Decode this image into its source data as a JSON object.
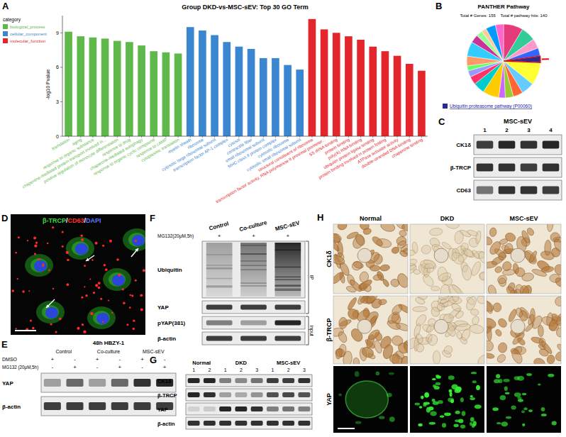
{
  "chart_data": [
    {
      "type": "bar",
      "panel_label": "A",
      "title": "Group DKD-vs-MSC-sEV: Top 30 GO Term",
      "y_label": "-log10 Pvalue",
      "legend_title": "category",
      "legend": "top-left",
      "grid": false,
      "categories": [
        "translation",
        "aging",
        "response to organic substance",
        "chaperone-mediated protein transport involved in...",
        "positive regulation of monocyte differentiation",
        "response to drug",
        "chaperone-mediated autophagy",
        "response to organic cyclic compound",
        "response to cAMP",
        "cytoplasmic translation",
        "myelin sheath",
        "ribosome",
        "cytosolic large ribosomal subunit",
        "transcription factor AP-1 complex",
        "cytosol",
        "contractile fiber",
        "small ribosomal subunit",
        "MHC class II protein complex",
        "cytosolic ribosome",
        "cytosolic small ribosomal subunit",
        "structural constituent of ribosome",
        "transcription factor activity, RNA polymerase II proximal promoter...",
        "5S rRNA binding",
        "protein binding",
        "poly(A) RNA binding",
        "ubiquitin protein ligase binding",
        "protein binding involved in protein folding",
        "ATPase activator activity",
        "double-stranded DNA binding",
        "chaperone binding"
      ],
      "series": [
        {
          "name": "biological_process",
          "color": "#5fb94a",
          "values": [
            9.1,
            8.7,
            8.6,
            8.5,
            8.3,
            8.2,
            7.9,
            7.4,
            7.3,
            7.2,
            null,
            null,
            null,
            null,
            null,
            null,
            null,
            null,
            null,
            null,
            null,
            null,
            null,
            null,
            null,
            null,
            null,
            null,
            null,
            null
          ]
        },
        {
          "name": "cellular_component",
          "color": "#3b86d0",
          "values": [
            null,
            null,
            null,
            null,
            null,
            null,
            null,
            null,
            null,
            null,
            9.5,
            9.2,
            8.8,
            8.2,
            7.8,
            7.6,
            6.8,
            6.8,
            6.2,
            5.8,
            null,
            null,
            null,
            null,
            null,
            null,
            null,
            null,
            null,
            null
          ]
        },
        {
          "name": "molecular_function",
          "color": "#e3262b",
          "values": [
            null,
            null,
            null,
            null,
            null,
            null,
            null,
            null,
            null,
            null,
            null,
            null,
            null,
            null,
            null,
            null,
            null,
            null,
            null,
            null,
            10.2,
            9.3,
            9.0,
            8.7,
            8.4,
            7.8,
            7.4,
            7.0,
            6.3,
            5.7
          ]
        }
      ],
      "ylim": [
        0,
        10.5
      ],
      "yticks": [
        0,
        3,
        6,
        9
      ]
    },
    {
      "type": "pie",
      "panel_label": "B",
      "title": "PANTHER Pathway",
      "subtitle": "Total # Genes: 155    Total # pathway hits: 140",
      "legend": "bottom",
      "categories": [
        null,
        null,
        null,
        null,
        "Ubiquitin proteasome pathway (P00060)",
        null,
        null,
        null,
        null,
        null,
        null,
        null,
        null,
        null,
        null,
        null,
        null,
        null,
        null,
        null,
        null,
        null
      ],
      "values": [
        12,
        9,
        6,
        5,
        4,
        14,
        8,
        6,
        5,
        4,
        10,
        7,
        5,
        4,
        3,
        6,
        9,
        5,
        4,
        3,
        6,
        5
      ],
      "colors": [
        "#e63b7a",
        "#33cc99",
        "#ff99cc",
        "#3366ff",
        "#2b2b8f",
        "#ffff33",
        "#66ccff",
        "#ff6633",
        "#99cc33",
        "#cc66ff",
        "#ffcc00",
        "#00cccc",
        "#ff3366",
        "#9999ff",
        "#66ff66",
        "#ff9966",
        "#33ccff",
        "#cc3399",
        "#99ff99",
        "#ffcc99",
        "#0099ff",
        "#ff66cc"
      ]
    }
  ],
  "panels": {
    "C": {
      "panel_label": "C",
      "title": "MSC-sEV",
      "lanes": [
        "1",
        "2",
        "3",
        "4"
      ],
      "rows": [
        "CK1δ",
        "β-TRCP",
        "CD63"
      ]
    },
    "D": {
      "panel_label": "D",
      "stain_label": [
        "β-TRCP",
        "/",
        "CD63",
        "/",
        "DAPI"
      ],
      "colors": [
        "#3ddc3d",
        "#ffffff",
        "#ff3030",
        "#ffffff",
        "#5a78ff"
      ]
    },
    "E": {
      "panel_label": "E",
      "title": "48h HBZY-1",
      "groups": [
        "Control",
        "Co-culture",
        "MSC-sEV"
      ],
      "treatments": [
        {
          "name": "DMSO",
          "marks": [
            "+",
            "-",
            "+",
            "-",
            "+",
            "-"
          ]
        },
        {
          "name": "MG132 (20μM,5h)",
          "marks": [
            "-",
            "+",
            "-",
            "+",
            "-",
            "+"
          ]
        }
      ],
      "rows": [
        "YAP",
        "β-actin"
      ]
    },
    "F": {
      "panel_label": "F",
      "groups": [
        "Control",
        "Co-culture",
        "MSC-sEV"
      ],
      "treatment": {
        "name": "MG132(20μM,5h)",
        "marks": [
          "+",
          "+",
          "+"
        ]
      },
      "rows": [
        "Ubiquitin",
        "YAP",
        "pYAP(381)",
        "β-actin"
      ],
      "brackets": [
        "IP",
        "Input"
      ]
    },
    "G": {
      "panel_label": "G",
      "groups": [
        {
          "name": "Normal",
          "lanes": [
            "1",
            "2"
          ]
        },
        {
          "name": "DKD",
          "lanes": [
            "1",
            "2",
            "3"
          ]
        },
        {
          "name": "MSC-sEV",
          "lanes": [
            "1",
            "2",
            "3"
          ]
        }
      ],
      "rows": [
        "CK1δ",
        "β-TRCP",
        "YAP",
        "β-actin"
      ]
    },
    "H": {
      "panel_label": "H",
      "columns": [
        "Normal",
        "DKD",
        "MSC-sEV"
      ],
      "rows": [
        "CK1δ",
        "β-TRCP",
        "YAP"
      ]
    }
  }
}
